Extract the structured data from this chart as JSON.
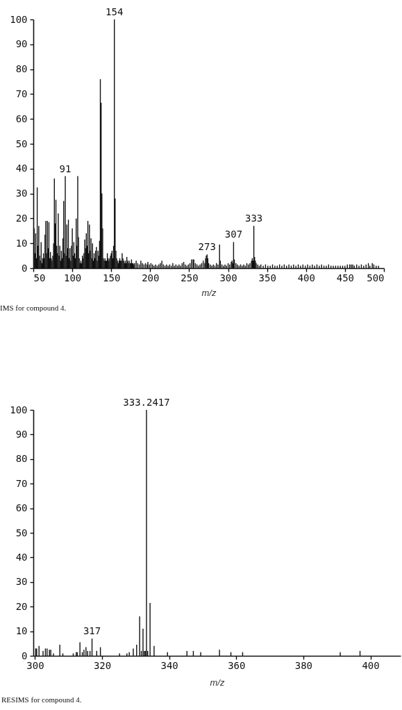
{
  "chart_data": [
    {
      "type": "bar",
      "xlabel": "m/z",
      "color": "#111111",
      "xlim": [
        50,
        500
      ],
      "xticks": [
        50,
        100,
        150,
        200,
        250,
        300,
        350,
        400,
        450,
        500
      ],
      "ylim": [
        0,
        100
      ],
      "yticks": [
        0,
        10,
        20,
        30,
        40,
        50,
        60,
        70,
        80,
        90,
        100
      ],
      "x": [
        51,
        52,
        53,
        54,
        55,
        56,
        57,
        58,
        59,
        60,
        61,
        62,
        63,
        64,
        65,
        66,
        67,
        68,
        69,
        70,
        71,
        72,
        73,
        74,
        75,
        76,
        77,
        78,
        79,
        80,
        81,
        82,
        83,
        84,
        85,
        86,
        87,
        88,
        89,
        90,
        91,
        92,
        93,
        94,
        95,
        96,
        97,
        98,
        99,
        100,
        101,
        102,
        103,
        104,
        105,
        106,
        107,
        108,
        109,
        110,
        111,
        112,
        113,
        114,
        115,
        116,
        117,
        118,
        119,
        120,
        121,
        122,
        123,
        124,
        125,
        126,
        127,
        128,
        129,
        130,
        131,
        132,
        133,
        134,
        135,
        136,
        137,
        138,
        139,
        140,
        141,
        142,
        143,
        144,
        145,
        146,
        147,
        148,
        149,
        150,
        151,
        152,
        153,
        154,
        155,
        156,
        157,
        158,
        159,
        160,
        161,
        162,
        163,
        164,
        165,
        166,
        167,
        168,
        169,
        170,
        171,
        172,
        173,
        174,
        175,
        176,
        177,
        178,
        179,
        180,
        182,
        184,
        186,
        188,
        190,
        192,
        194,
        196,
        197,
        199,
        201,
        203,
        205,
        207,
        209,
        211,
        213,
        215,
        217,
        219,
        221,
        223,
        225,
        227,
        229,
        231,
        233,
        235,
        237,
        239,
        241,
        243,
        245,
        247,
        249,
        251,
        253,
        255,
        256,
        258,
        260,
        262,
        264,
        266,
        268,
        270,
        271,
        272,
        273,
        274,
        275,
        277,
        279,
        281,
        283,
        285,
        287,
        289,
        290,
        292,
        294,
        296,
        298,
        300,
        302,
        304,
        305,
        306,
        307,
        308,
        310,
        312,
        314,
        316,
        318,
        320,
        322,
        324,
        326,
        328,
        330,
        331,
        332,
        333,
        334,
        335,
        336,
        338,
        340,
        342,
        345,
        348,
        351,
        354,
        357,
        360,
        363,
        366,
        369,
        372,
        375,
        378,
        381,
        384,
        387,
        390,
        393,
        396,
        399,
        402,
        405,
        408,
        411,
        414,
        417,
        420,
        423,
        426,
        429,
        432,
        435,
        438,
        441,
        444,
        447,
        450,
        453,
        456,
        458,
        460,
        462,
        465,
        468,
        471,
        474,
        477,
        480,
        482,
        485,
        487,
        490,
        493
      ],
      "values": [
        16,
        6,
        14,
        4,
        32.5,
        9,
        17,
        5,
        3,
        10.5,
        2,
        4,
        6,
        4,
        13.5,
        19,
        6,
        19,
        8,
        18.5,
        4,
        6.5,
        4,
        3,
        5,
        10,
        36,
        18,
        27.5,
        9,
        6,
        22,
        5,
        9,
        3,
        7,
        4,
        12,
        27,
        6,
        37,
        5,
        17.5,
        8,
        19.5,
        4,
        8,
        3,
        9,
        16,
        5,
        10.5,
        6,
        4,
        20,
        9,
        37,
        12.5,
        4,
        2,
        3,
        2,
        5,
        4,
        6,
        11.5,
        8,
        14,
        9,
        19,
        6,
        17.5,
        7,
        12,
        4,
        10,
        3,
        6,
        4,
        7,
        8.5,
        3,
        7,
        5,
        11,
        76,
        66.5,
        30,
        16,
        4,
        3,
        4,
        3,
        3,
        6,
        4,
        3,
        4,
        5,
        6,
        7,
        4,
        9,
        100,
        28,
        7,
        4,
        3,
        2,
        3,
        4,
        3,
        3,
        6,
        4,
        3,
        2,
        3,
        2,
        4.5,
        3,
        2,
        3,
        2,
        2,
        3.5,
        2,
        2,
        1.5,
        2,
        3,
        2,
        1.5,
        3,
        2,
        1.5,
        2,
        1.5,
        2.5,
        1.5,
        2,
        1.5,
        1,
        1.5,
        1,
        1.5,
        2,
        3,
        1.5,
        1,
        1.5,
        1,
        1.5,
        1,
        2,
        1,
        1.5,
        1,
        1.5,
        1,
        2,
        2.5,
        1.5,
        1,
        1.5,
        2,
        3.5,
        3.5,
        3.5,
        2,
        1.5,
        1,
        1.5,
        2,
        3,
        2,
        4,
        5,
        5.5,
        4,
        2,
        1.5,
        1,
        1.5,
        1,
        2,
        1.5,
        9.5,
        3,
        1.5,
        1,
        1.5,
        1,
        2,
        1.5,
        2.5,
        3,
        2,
        10.5,
        3.5,
        2,
        1.5,
        1,
        1.5,
        1,
        1.5,
        1,
        2,
        1.5,
        2,
        3,
        4,
        3,
        17,
        4.5,
        3,
        2,
        1.5,
        1,
        1.5,
        1,
        1.5,
        1,
        1,
        1.5,
        1,
        1,
        1.5,
        1,
        1.5,
        1,
        1.5,
        1,
        1.5,
        1,
        1.5,
        1,
        1.5,
        1,
        1.5,
        1,
        1.5,
        1,
        1.5,
        1,
        1.5,
        1,
        1,
        1.5,
        1,
        1,
        1,
        1,
        1,
        1,
        1,
        1.5,
        1.5,
        1.5,
        1.5,
        1,
        1.5,
        1,
        1.5,
        1,
        1.5,
        2,
        1,
        2,
        1.5,
        1,
        1
      ],
      "annotations": [
        {
          "text": "91",
          "x": 91,
          "y": 37
        },
        {
          "text": "154",
          "x": 154,
          "y": 100
        },
        {
          "text": "273",
          "x": 273,
          "y": 5.5
        },
        {
          "text": "307",
          "x": 307,
          "y": 10.5
        },
        {
          "text": "333",
          "x": 333,
          "y": 17
        },
        "IMS for compound 4."
      ]
    },
    {
      "type": "bar",
      "xlabel": "m/z",
      "color": "#111111",
      "xlim": [
        299.5,
        409
      ],
      "xticks": [
        300,
        320,
        340,
        360,
        380,
        400
      ],
      "ylim": [
        0,
        100
      ],
      "yticks": [
        0,
        10,
        20,
        30,
        40,
        50,
        60,
        70,
        80,
        90,
        100
      ],
      "x": [
        300.2,
        300.5,
        301.2,
        302.4,
        303.1,
        303.6,
        304.3,
        304.7,
        305.5,
        307.4,
        308.3,
        311.4,
        312.3,
        312.6,
        313.4,
        314.1,
        314.6,
        315.2,
        315.7,
        316.4,
        317,
        318.4,
        319.5,
        325.2,
        327.4,
        328.1,
        329.3,
        330.3,
        331.2,
        331.7,
        332.2,
        332.6,
        332.9,
        333.2417,
        333.6,
        334.3,
        335.5,
        339.5,
        345.3,
        347.2,
        349.4,
        355.0,
        358.4,
        361.9,
        391.0,
        396.9
      ],
      "values": [
        3,
        3,
        4,
        2,
        3,
        3,
        2.5,
        2.5,
        1,
        4.5,
        1,
        1,
        1.5,
        1.5,
        5.5,
        1.5,
        2.5,
        3.5,
        2,
        2,
        7,
        2,
        3.5,
        1,
        1,
        1.5,
        3,
        4.5,
        16,
        2,
        11,
        2,
        2,
        100,
        2,
        21.5,
        4,
        1.5,
        2,
        2,
        1.5,
        2.5,
        1.5,
        1.5,
        1.5,
        2
      ],
      "annotations": [
        {
          "text": "333.2417",
          "x": 333.2417,
          "y": 100
        },
        {
          "text": "317",
          "x": 317,
          "y": 7
        },
        "RESIMS for compound 4."
      ]
    }
  ]
}
